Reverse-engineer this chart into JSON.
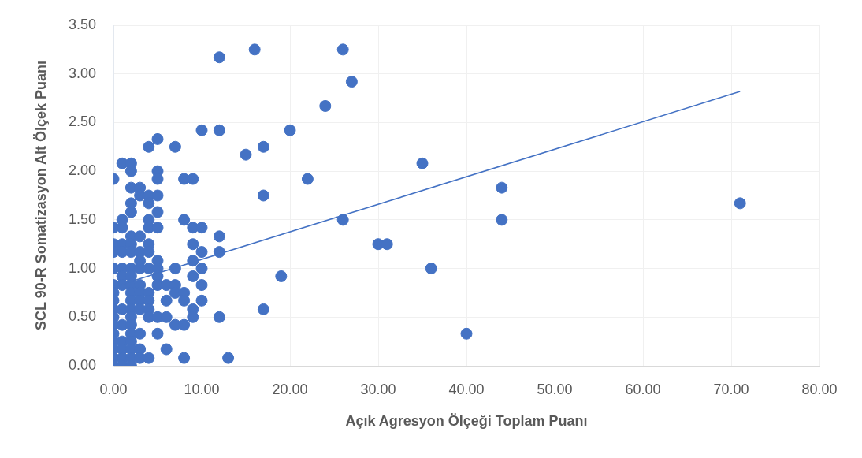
{
  "chart_data": {
    "type": "scatter",
    "xlabel": "Açık Agresyon Ölçeği Toplam Puanı",
    "ylabel": "SCL 90-R Somatizasyon Alt Ölçek Puanı",
    "xlim": [
      0,
      80
    ],
    "xticks": [
      {
        "value": 0,
        "label": "0.00"
      },
      {
        "value": 10,
        "label": "10.00"
      },
      {
        "value": 20,
        "label": "20.00"
      },
      {
        "value": 30,
        "label": "30.00"
      },
      {
        "value": 40,
        "label": "40.00"
      },
      {
        "value": 50,
        "label": "50.00"
      },
      {
        "value": 60,
        "label": "60.00"
      },
      {
        "value": 70,
        "label": "70.00"
      },
      {
        "value": 80,
        "label": "80.00"
      }
    ],
    "ylim": [
      0,
      3.5
    ],
    "yticks": [
      {
        "value": 0,
        "label": "0.00"
      },
      {
        "value": 0.5,
        "label": "0.50"
      },
      {
        "value": 1,
        "label": "1.00"
      },
      {
        "value": 1.5,
        "label": "1.50"
      },
      {
        "value": 2,
        "label": "2.00"
      },
      {
        "value": 2.5,
        "label": "2.50"
      },
      {
        "value": 3,
        "label": "3.00"
      },
      {
        "value": 3.5,
        "label": "3.50"
      }
    ],
    "grid": true,
    "marker": "circle",
    "series": [
      {
        "type": "scatter",
        "color": "#4472c4",
        "x": [
          12,
          16,
          26,
          27,
          24,
          10,
          12,
          20,
          5,
          4,
          7,
          17,
          15,
          1,
          2,
          35,
          2,
          5,
          0,
          5,
          8,
          9,
          22,
          2,
          3,
          44,
          3,
          4,
          5,
          17,
          2,
          4,
          71,
          2,
          5,
          1,
          4,
          8,
          26,
          44,
          0,
          1,
          4,
          5,
          9,
          10,
          2,
          3,
          12,
          0,
          1,
          2,
          4,
          9,
          30,
          31,
          0,
          1,
          2,
          3,
          4,
          10,
          12,
          3,
          5,
          9,
          0,
          1,
          2,
          3,
          4,
          5,
          7,
          10,
          36,
          1,
          2,
          5,
          9,
          19,
          0,
          1,
          2,
          3,
          5,
          6,
          7,
          10,
          0,
          2,
          3,
          4,
          7,
          8,
          0,
          2,
          3,
          4,
          6,
          8,
          10,
          0,
          1,
          2,
          3,
          4,
          9,
          17,
          0,
          2,
          4,
          5,
          6,
          9,
          12,
          0,
          1,
          2,
          7,
          8,
          0,
          2,
          3,
          5,
          40,
          0,
          1,
          2,
          0,
          1,
          2,
          3,
          6,
          0,
          1,
          2,
          3,
          4,
          8,
          13,
          0,
          1,
          2
        ],
        "values": [
          3.17,
          3.25,
          3.25,
          2.92,
          2.67,
          2.42,
          2.42,
          2.42,
          2.33,
          2.25,
          2.25,
          2.25,
          2.17,
          2.08,
          2.08,
          2.08,
          2,
          2,
          1.92,
          1.92,
          1.92,
          1.92,
          1.92,
          1.83,
          1.83,
          1.83,
          1.75,
          1.75,
          1.75,
          1.75,
          1.67,
          1.67,
          1.67,
          1.58,
          1.58,
          1.5,
          1.5,
          1.5,
          1.5,
          1.5,
          1.42,
          1.42,
          1.42,
          1.42,
          1.42,
          1.42,
          1.33,
          1.33,
          1.33,
          1.25,
          1.25,
          1.25,
          1.25,
          1.25,
          1.25,
          1.25,
          1.17,
          1.17,
          1.17,
          1.17,
          1.17,
          1.17,
          1.17,
          1.08,
          1.08,
          1.08,
          1,
          1,
          1,
          1,
          1,
          1,
          1,
          1,
          1,
          0.92,
          0.92,
          0.92,
          0.92,
          0.92,
          0.83,
          0.83,
          0.83,
          0.83,
          0.83,
          0.83,
          0.83,
          0.83,
          0.75,
          0.75,
          0.75,
          0.75,
          0.75,
          0.75,
          0.67,
          0.67,
          0.67,
          0.67,
          0.67,
          0.67,
          0.67,
          0.58,
          0.58,
          0.58,
          0.58,
          0.58,
          0.58,
          0.58,
          0.5,
          0.5,
          0.5,
          0.5,
          0.5,
          0.5,
          0.5,
          0.42,
          0.42,
          0.42,
          0.42,
          0.42,
          0.33,
          0.33,
          0.33,
          0.33,
          0.33,
          0.25,
          0.25,
          0.25,
          0.17,
          0.17,
          0.17,
          0.17,
          0.17,
          0.08,
          0.08,
          0.08,
          0.08,
          0.08,
          0.08,
          0.08,
          0,
          0,
          0
        ]
      },
      {
        "type": "line",
        "color": "#4472c4",
        "marker": "none",
        "x": [
          0,
          71
        ],
        "values": [
          0.81,
          2.82
        ]
      }
    ]
  }
}
